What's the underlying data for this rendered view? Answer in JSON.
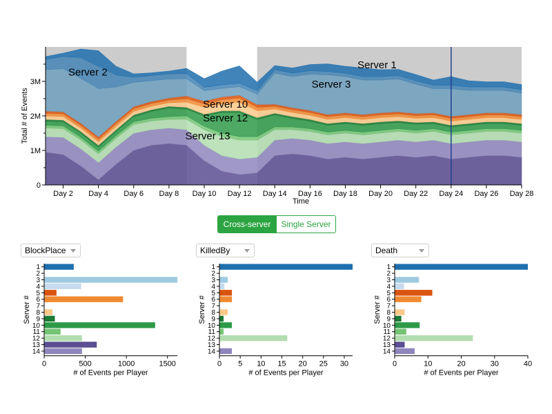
{
  "toggle": {
    "active": "Cross-server",
    "inactive": "Single Server"
  },
  "stream_labels": [
    {
      "server": "1",
      "text": "Server 1",
      "day": 19.8,
      "y": 3.38
    },
    {
      "server": "2",
      "text": "Server 2",
      "day": 3.4,
      "y": 3.17
    },
    {
      "server": "3",
      "text": "Server 3",
      "day": 17.2,
      "y": 2.82
    },
    {
      "server": "10",
      "text": "Server 10",
      "day": 11.2,
      "y": 2.24
    },
    {
      "server": "12",
      "text": "Server 12",
      "day": 11.2,
      "y": 1.84
    },
    {
      "server": "13",
      "text": "Server 13",
      "day": 10.2,
      "y": 1.32
    }
  ],
  "chart_data": [
    {
      "type": "area",
      "title": "",
      "xlabel": "Time",
      "ylabel": "Total # of Events",
      "xlim": [
        1,
        28
      ],
      "ylim": [
        0,
        4
      ],
      "y_unit": "M",
      "x_ticks": [
        2,
        4,
        6,
        8,
        10,
        12,
        14,
        16,
        18,
        20,
        22,
        24,
        26,
        28
      ],
      "x_tick_labels": [
        "Day 2",
        "Day 4",
        "Day 6",
        "Day 8",
        "Day 10",
        "Day 12",
        "Day 14",
        "Day 16",
        "Day 18",
        "Day 20",
        "Day 22",
        "Day 24",
        "Day 26",
        "Day 28"
      ],
      "y_ticks": [
        0,
        1,
        2,
        3
      ],
      "y_tick_labels": [
        "0",
        "1M",
        "2M",
        "3M"
      ],
      "shaded_ranges": [
        [
          1,
          9
        ],
        [
          13,
          28
        ]
      ],
      "marker_day": 24,
      "x": [
        1,
        2,
        3,
        4,
        5,
        6,
        7,
        8,
        9,
        10,
        11,
        12,
        13,
        14,
        15,
        16,
        17,
        18,
        19,
        20,
        21,
        22,
        23,
        24,
        25,
        26,
        27,
        28
      ],
      "series": [
        {
          "name": "Server 13",
          "color": "#5b4e92",
          "values": [
            0.95,
            0.88,
            0.55,
            0.15,
            0.6,
            1.0,
            1.15,
            1.2,
            1.15,
            0.7,
            0.4,
            0.3,
            0.35,
            0.85,
            0.9,
            0.85,
            0.75,
            0.8,
            0.75,
            0.8,
            0.85,
            0.8,
            0.85,
            0.75,
            0.8,
            0.85,
            0.85,
            0.8
          ]
        },
        {
          "name": "Server 14",
          "color": "#8f86bd",
          "values": [
            0.45,
            0.5,
            0.5,
            0.5,
            0.5,
            0.5,
            0.45,
            0.45,
            0.45,
            0.45,
            0.45,
            0.45,
            0.45,
            0.45,
            0.45,
            0.45,
            0.45,
            0.45,
            0.45,
            0.45,
            0.45,
            0.45,
            0.45,
            0.45,
            0.45,
            0.45,
            0.45,
            0.45
          ]
        },
        {
          "name": "Server 12",
          "color": "#b2ddb0",
          "values": [
            0.25,
            0.25,
            0.25,
            0.25,
            0.25,
            0.25,
            0.25,
            0.25,
            0.3,
            0.45,
            0.55,
            0.55,
            0.5,
            0.3,
            0.25,
            0.25,
            0.25,
            0.25,
            0.25,
            0.25,
            0.25,
            0.25,
            0.25,
            0.25,
            0.25,
            0.25,
            0.25,
            0.25
          ]
        },
        {
          "name": "Server 11",
          "color": "#74c476",
          "values": [
            0.08,
            0.08,
            0.08,
            0.08,
            0.08,
            0.08,
            0.08,
            0.08,
            0.1,
            0.1,
            0.1,
            0.1,
            0.1,
            0.08,
            0.08,
            0.08,
            0.08,
            0.08,
            0.08,
            0.08,
            0.08,
            0.08,
            0.08,
            0.08,
            0.08,
            0.08,
            0.08,
            0.08
          ]
        },
        {
          "name": "Server 10",
          "color": "#2e9a48",
          "values": [
            0.12,
            0.12,
            0.12,
            0.12,
            0.12,
            0.15,
            0.2,
            0.25,
            0.2,
            0.3,
            0.6,
            0.7,
            0.5,
            0.35,
            0.25,
            0.22,
            0.2,
            0.2,
            0.2,
            0.2,
            0.18,
            0.18,
            0.15,
            0.15,
            0.15,
            0.15,
            0.15,
            0.15
          ]
        },
        {
          "name": "Server 9",
          "color": "#1b7a34",
          "values": [
            0.05,
            0.05,
            0.05,
            0.05,
            0.05,
            0.05,
            0.05,
            0.05,
            0.05,
            0.05,
            0.05,
            0.05,
            0.05,
            0.05,
            0.05,
            0.05,
            0.05,
            0.05,
            0.05,
            0.05,
            0.05,
            0.05,
            0.05,
            0.05,
            0.05,
            0.05,
            0.05,
            0.05
          ]
        },
        {
          "name": "Server 8",
          "color": "#fbc98a",
          "values": [
            0.1,
            0.1,
            0.1,
            0.1,
            0.1,
            0.1,
            0.1,
            0.1,
            0.15,
            0.2,
            0.2,
            0.25,
            0.2,
            0.12,
            0.12,
            0.12,
            0.12,
            0.12,
            0.12,
            0.12,
            0.12,
            0.12,
            0.12,
            0.12,
            0.12,
            0.12,
            0.12,
            0.12
          ]
        },
        {
          "name": "Server 6",
          "color": "#f08a32",
          "values": [
            0.08,
            0.08,
            0.08,
            0.08,
            0.08,
            0.08,
            0.08,
            0.08,
            0.1,
            0.1,
            0.12,
            0.12,
            0.1,
            0.08,
            0.08,
            0.08,
            0.08,
            0.08,
            0.08,
            0.08,
            0.08,
            0.08,
            0.08,
            0.08,
            0.08,
            0.08,
            0.08,
            0.08
          ]
        },
        {
          "name": "Server 5",
          "color": "#d9540f",
          "values": [
            0.06,
            0.06,
            0.06,
            0.06,
            0.06,
            0.06,
            0.06,
            0.06,
            0.08,
            0.08,
            0.08,
            0.08,
            0.08,
            0.06,
            0.06,
            0.06,
            0.06,
            0.06,
            0.06,
            0.06,
            0.06,
            0.06,
            0.06,
            0.06,
            0.06,
            0.06,
            0.06,
            0.06
          ]
        },
        {
          "name": "Server 3",
          "color": "#6f9fbd",
          "values": [
            1.2,
            1.25,
            1.3,
            1.4,
            1.0,
            0.7,
            0.6,
            0.55,
            0.5,
            0.3,
            0.25,
            0.25,
            0.3,
            0.9,
            0.9,
            1.05,
            1.15,
            1.05,
            1.0,
            0.95,
            0.95,
            0.85,
            0.7,
            0.8,
            0.7,
            0.65,
            0.65,
            0.62
          ]
        },
        {
          "name": "Server 2",
          "color": "#4484b4",
          "values": [
            0.3,
            0.35,
            0.6,
            0.65,
            0.35,
            0.15,
            0.15,
            0.15,
            0.15,
            0.1,
            0.1,
            0.1,
            0.1,
            0.1,
            0.1,
            0.1,
            0.1,
            0.1,
            0.1,
            0.1,
            0.1,
            0.1,
            0.1,
            0.1,
            0.1,
            0.1,
            0.1,
            0.1
          ]
        },
        {
          "name": "Server 1",
          "color": "#1f6fae",
          "values": [
            0.08,
            0.1,
            0.25,
            0.45,
            0.25,
            0.1,
            0.08,
            0.08,
            0.15,
            0.25,
            0.4,
            0.5,
            0.25,
            0.12,
            0.15,
            0.18,
            0.22,
            0.2,
            0.25,
            0.2,
            0.18,
            0.18,
            0.15,
            0.25,
            0.18,
            0.15,
            0.15,
            0.15
          ]
        }
      ]
    },
    {
      "type": "bar",
      "orientation": "horizontal",
      "metric": "BlockPlace",
      "xlabel": "# of Events per Player",
      "ylabel": "Server #",
      "xlim": [
        0,
        1620
      ],
      "x_ticks": [
        0,
        500,
        1000,
        1500
      ],
      "categories": [
        "1",
        "2",
        "3",
        "4",
        "5",
        "6",
        "7",
        "8",
        "9",
        "10",
        "11",
        "12",
        "13",
        "14"
      ],
      "values": [
        360,
        0,
        1620,
        450,
        150,
        960,
        0,
        100,
        130,
        1350,
        200,
        460,
        640,
        460
      ],
      "colors": [
        "#1f6fae",
        "#4484b4",
        "#9ecae1",
        "#c6dbef",
        "#d9540f",
        "#f08a32",
        "#fdae6b",
        "#fbc98a",
        "#1b7a34",
        "#2e9a48",
        "#74c476",
        "#b2ddb0",
        "#5b4e92",
        "#8f86bd"
      ]
    },
    {
      "type": "bar",
      "orientation": "horizontal",
      "metric": "KilledBy",
      "xlabel": "# of Events per Player",
      "ylabel": "Server #",
      "xlim": [
        0,
        32
      ],
      "x_ticks": [
        0,
        5,
        10,
        15,
        20,
        25,
        30
      ],
      "categories": [
        "1",
        "2",
        "3",
        "4",
        "5",
        "6",
        "7",
        "8",
        "9",
        "10",
        "11",
        "12",
        "13",
        "14"
      ],
      "values": [
        32,
        0,
        2,
        1.2,
        3,
        3,
        0,
        2,
        1,
        3,
        1,
        16.3,
        0,
        3
      ],
      "colors": [
        "#1f6fae",
        "#4484b4",
        "#9ecae1",
        "#c6dbef",
        "#d9540f",
        "#f08a32",
        "#fdae6b",
        "#fbc98a",
        "#1b7a34",
        "#2e9a48",
        "#74c476",
        "#b2ddb0",
        "#5b4e92",
        "#8f86bd"
      ]
    },
    {
      "type": "bar",
      "orientation": "horizontal",
      "metric": "Death",
      "xlabel": "# of Events per Player",
      "ylabel": "Server #",
      "xlim": [
        0,
        40
      ],
      "x_ticks": [
        0,
        10,
        20,
        30,
        40
      ],
      "categories": [
        "1",
        "2",
        "3",
        "4",
        "5",
        "6",
        "7",
        "8",
        "9",
        "10",
        "11",
        "12",
        "13",
        "14"
      ],
      "values": [
        40,
        0,
        7.3,
        2.8,
        11.3,
        8,
        0,
        3,
        2,
        7.5,
        3.5,
        23.5,
        3,
        6
      ],
      "colors": [
        "#1f6fae",
        "#4484b4",
        "#9ecae1",
        "#c6dbef",
        "#d9540f",
        "#f08a32",
        "#fdae6b",
        "#fbc98a",
        "#1b7a34",
        "#2e9a48",
        "#74c476",
        "#b2ddb0",
        "#5b4e92",
        "#8f86bd"
      ]
    }
  ]
}
